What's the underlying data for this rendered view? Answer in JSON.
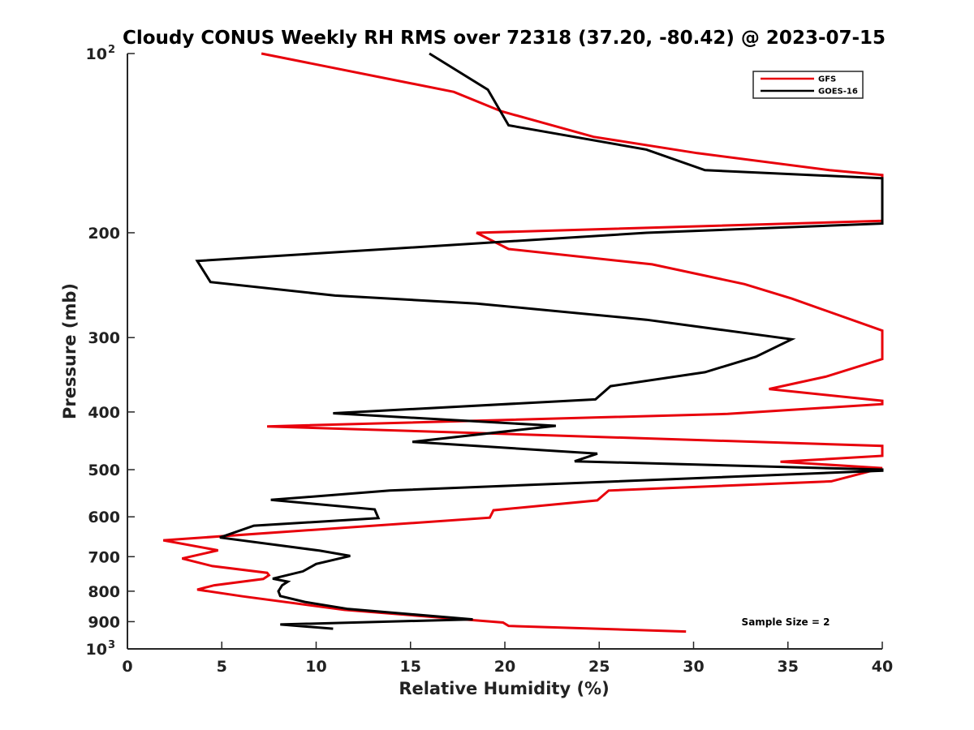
{
  "chart_data": {
    "type": "line",
    "title": "Cloudy CONUS Weekly RH RMS over 72318 (37.20, -80.42) @ 2023-07-15",
    "xlabel": "Relative Humidity (%)",
    "ylabel": "Pressure (mb)",
    "xlim": [
      0,
      40
    ],
    "ylim": [
      1000,
      100
    ],
    "yscale": "log",
    "xticks": [
      0,
      5,
      10,
      15,
      20,
      25,
      30,
      35,
      40
    ],
    "xtick_labels": [
      "0",
      "5",
      "10",
      "15",
      "20",
      "25",
      "30",
      "35",
      "40"
    ],
    "yticks": [
      {
        "value": 100,
        "label": "10",
        "exp": "2"
      },
      {
        "value": 200,
        "label": "200"
      },
      {
        "value": 300,
        "label": "300"
      },
      {
        "value": 400,
        "label": "400"
      },
      {
        "value": 500,
        "label": "500"
      },
      {
        "value": 600,
        "label": "600"
      },
      {
        "value": 700,
        "label": "700"
      },
      {
        "value": 800,
        "label": "800"
      },
      {
        "value": 900,
        "label": "900"
      },
      {
        "value": 1000,
        "label": "10",
        "exp": "3"
      }
    ],
    "legend_position": "top-right",
    "annotation": "Sample Size = 2",
    "series": [
      {
        "name": "GFS",
        "color": "#e8000b",
        "points": [
          [
            7.1,
            100
          ],
          [
            17.3,
            116
          ],
          [
            19.8,
            125
          ],
          [
            24.7,
            138
          ],
          [
            30.2,
            147
          ],
          [
            37.2,
            157
          ],
          [
            40.0,
            160
          ],
          [
            40.0,
            191
          ],
          [
            18.5,
            200
          ],
          [
            20.2,
            213
          ],
          [
            27.8,
            226
          ],
          [
            32.7,
            244
          ],
          [
            35.2,
            258
          ],
          [
            40.0,
            292
          ],
          [
            40.0,
            326
          ],
          [
            37.0,
            349
          ],
          [
            34.0,
            366
          ],
          [
            40.0,
            383
          ],
          [
            40.0,
            388
          ],
          [
            31.8,
            403
          ],
          [
            7.4,
            423
          ],
          [
            40.0,
            456
          ],
          [
            40.0,
            474
          ],
          [
            34.6,
            485
          ],
          [
            40.0,
            497
          ],
          [
            37.3,
            523
          ],
          [
            25.5,
            542
          ],
          [
            24.9,
            563
          ],
          [
            19.4,
            585
          ],
          [
            19.2,
            602
          ],
          [
            1.9,
            657
          ],
          [
            4.8,
            683
          ],
          [
            2.9,
            705
          ],
          [
            4.5,
            726
          ],
          [
            7.4,
            745
          ],
          [
            7.5,
            752
          ],
          [
            7.2,
            763
          ],
          [
            4.6,
            782
          ],
          [
            3.7,
            795
          ],
          [
            6.1,
            816
          ],
          [
            11.5,
            860
          ],
          [
            19.9,
            903
          ],
          [
            20.2,
            915
          ],
          [
            29.6,
            935
          ]
        ]
      },
      {
        "name": "GOES-16",
        "color": "#000000",
        "points": [
          [
            16.0,
            100
          ],
          [
            19.1,
            115
          ],
          [
            20.2,
            132
          ],
          [
            27.5,
            145
          ],
          [
            30.6,
            157
          ],
          [
            40.0,
            162
          ],
          [
            40.0,
            193
          ],
          [
            27.5,
            200
          ],
          [
            3.7,
            223
          ],
          [
            4.4,
            242
          ],
          [
            11.0,
            255
          ],
          [
            18.5,
            263
          ],
          [
            27.5,
            280
          ],
          [
            35.2,
            302
          ],
          [
            33.3,
            323
          ],
          [
            30.6,
            343
          ],
          [
            25.6,
            362
          ],
          [
            24.8,
            381
          ],
          [
            10.9,
            402
          ],
          [
            22.7,
            422
          ],
          [
            15.1,
            449
          ],
          [
            24.9,
            470
          ],
          [
            23.7,
            484
          ],
          [
            40.0,
            500
          ],
          [
            40.0,
            502
          ],
          [
            13.9,
            542
          ],
          [
            7.6,
            562
          ],
          [
            13.1,
            583
          ],
          [
            13.3,
            603
          ],
          [
            6.7,
            621
          ],
          [
            4.9,
            650
          ],
          [
            10.2,
            684
          ],
          [
            11.8,
            698
          ],
          [
            10.0,
            720
          ],
          [
            9.3,
            741
          ],
          [
            7.7,
            762
          ],
          [
            8.5,
            771
          ],
          [
            8.2,
            782
          ],
          [
            8.0,
            800
          ],
          [
            8.1,
            815
          ],
          [
            9.4,
            834
          ],
          [
            11.7,
            857
          ],
          [
            18.3,
            892
          ],
          [
            8.1,
            910
          ],
          [
            10.9,
            925
          ]
        ]
      }
    ]
  }
}
